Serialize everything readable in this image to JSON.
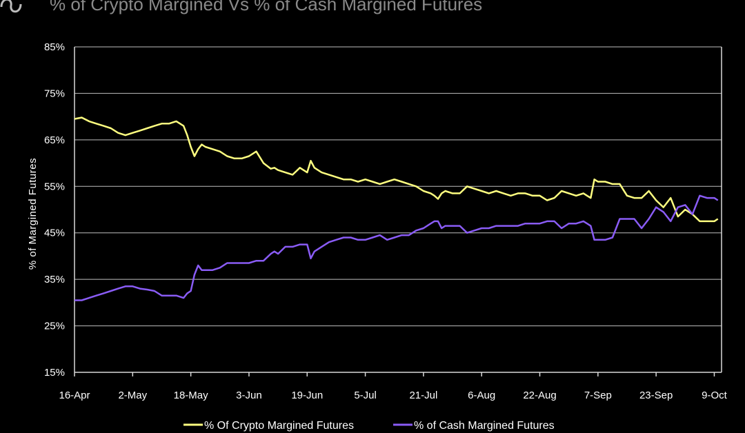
{
  "chart_data": {
    "type": "line",
    "title": "% of Crypto Margined Vs % of Cash Margined Futures",
    "ylabel": "% of Margined Futures",
    "xlabel": "",
    "ylim": [
      15,
      85
    ],
    "yticks": [
      "85%",
      "75%",
      "65%",
      "55%",
      "45%",
      "35%",
      "25%",
      "15%"
    ],
    "ytick_values": [
      85,
      75,
      65,
      55,
      45,
      35,
      25,
      15
    ],
    "xticks": [
      "16-Apr",
      "2-May",
      "18-May",
      "3-Jun",
      "19-Jun",
      "5-Jul",
      "21-Jul",
      "6-Aug",
      "22-Aug",
      "7-Sep",
      "23-Sep",
      "9-Oct"
    ],
    "xtick_days": [
      0,
      16,
      32,
      48,
      64,
      80,
      96,
      112,
      128,
      144,
      160,
      176
    ],
    "grid": "horizontal",
    "legend_position": "bottom-center",
    "series": [
      {
        "name": "% Of Crypto Margined Futures",
        "color": "#ffff80",
        "x": [
          0,
          2,
          4,
          6,
          8,
          10,
          12,
          14,
          16,
          18,
          20,
          22,
          24,
          26,
          28,
          30,
          31,
          32,
          33,
          34,
          35,
          36,
          38,
          40,
          42,
          44,
          46,
          48,
          50,
          52,
          54,
          55,
          56,
          58,
          60,
          62,
          64,
          65,
          66,
          68,
          70,
          72,
          74,
          76,
          78,
          80,
          82,
          84,
          86,
          88,
          90,
          92,
          94,
          96,
          98,
          99,
          100,
          101,
          102,
          104,
          106,
          108,
          110,
          112,
          114,
          116,
          118,
          120,
          122,
          124,
          126,
          128,
          130,
          132,
          134,
          136,
          138,
          140,
          141,
          142,
          143,
          144,
          146,
          148,
          150,
          152,
          154,
          156,
          158,
          160,
          162,
          164,
          166,
          168,
          170,
          172,
          174,
          176,
          177
        ],
        "values": [
          69.5,
          69.8,
          69,
          68.5,
          68,
          67.5,
          66.5,
          66,
          66.5,
          67,
          67.5,
          68,
          68.5,
          68.5,
          69,
          68,
          66,
          63.5,
          61.5,
          63,
          64,
          63.5,
          63,
          62.5,
          61.5,
          61,
          61,
          61.5,
          62.5,
          60,
          58.8,
          59,
          58.5,
          58,
          57.5,
          59,
          58,
          60.5,
          59,
          58,
          57.5,
          57,
          56.5,
          56.5,
          56,
          56.5,
          56,
          55.5,
          56,
          56.5,
          56,
          55.5,
          55,
          54,
          53.5,
          53,
          52.3,
          53.5,
          54,
          53.5,
          53.5,
          55,
          54.5,
          54,
          53.5,
          54,
          53.5,
          53,
          53.5,
          53.5,
          53,
          53,
          52,
          52.5,
          54,
          53.5,
          53,
          53.5,
          53,
          52.5,
          56.5,
          56,
          56,
          55.5,
          55.5,
          53,
          52.5,
          52.5,
          54,
          52,
          50.5,
          52.5,
          48.5,
          50,
          49,
          47.5,
          47.5,
          47.5,
          48
        ]
      },
      {
        "name": "% of Cash Margined Futures",
        "color": "#8a5cf6",
        "x": [
          0,
          2,
          4,
          6,
          8,
          10,
          12,
          14,
          16,
          18,
          20,
          22,
          24,
          26,
          28,
          30,
          31,
          32,
          33,
          34,
          35,
          36,
          38,
          40,
          42,
          44,
          46,
          48,
          50,
          52,
          54,
          55,
          56,
          58,
          60,
          62,
          64,
          65,
          66,
          68,
          70,
          72,
          74,
          76,
          78,
          80,
          82,
          84,
          86,
          88,
          90,
          92,
          94,
          96,
          98,
          99,
          100,
          101,
          102,
          104,
          106,
          108,
          110,
          112,
          114,
          116,
          118,
          120,
          122,
          124,
          126,
          128,
          130,
          132,
          134,
          136,
          138,
          140,
          141,
          142,
          143,
          144,
          146,
          148,
          150,
          152,
          154,
          156,
          158,
          160,
          162,
          164,
          166,
          168,
          170,
          172,
          174,
          176,
          177
        ],
        "values": [
          30.5,
          30.5,
          31,
          31.5,
          32,
          32.5,
          33,
          33.5,
          33.5,
          33,
          32.8,
          32.5,
          31.5,
          31.5,
          31.5,
          31,
          32,
          32.5,
          36,
          38,
          37,
          37,
          37,
          37.5,
          38.5,
          38.5,
          38.5,
          38.5,
          39,
          39,
          40.5,
          41,
          40.5,
          42,
          42,
          42.5,
          42.5,
          39.5,
          41,
          42,
          43,
          43.5,
          44,
          44,
          43.5,
          43.5,
          44,
          44.5,
          43.5,
          44,
          44.5,
          44.5,
          45.5,
          46,
          47,
          47.5,
          47.5,
          46,
          46.5,
          46.5,
          46.5,
          45,
          45.5,
          46,
          46,
          46.5,
          46.5,
          46.5,
          46.5,
          47,
          47,
          47,
          47.5,
          47.5,
          46,
          47,
          47,
          47.5,
          47,
          46.5,
          43.5,
          43.5,
          43.5,
          44,
          48,
          48,
          48,
          46,
          48,
          50.5,
          49.5,
          47.5,
          50.5,
          51,
          49,
          53,
          52.5,
          52.5,
          52
        ]
      }
    ]
  }
}
